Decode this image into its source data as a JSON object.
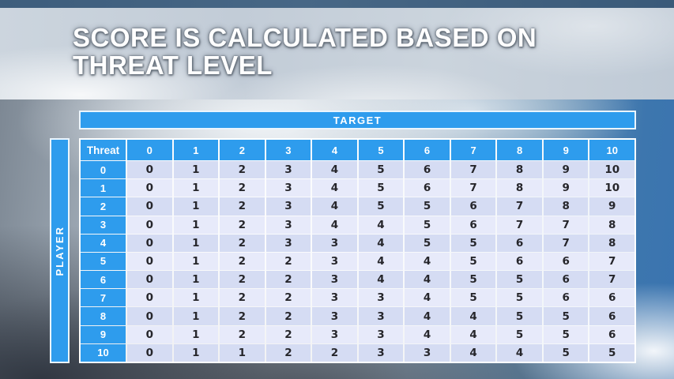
{
  "slide": {
    "title": {
      "line1": "SCORE IS CALCULATED BASED ON",
      "line2": "THREAT LEVEL"
    }
  },
  "axes": {
    "target_label": "TARGET",
    "player_label": "PLAYER"
  },
  "table": {
    "corner_label": "Threat",
    "column_headers": [
      "0",
      "1",
      "2",
      "3",
      "4",
      "5",
      "6",
      "7",
      "8",
      "9",
      "10"
    ],
    "rows": [
      {
        "label": "0",
        "values": [
          "0",
          "1",
          "2",
          "3",
          "4",
          "5",
          "6",
          "7",
          "8",
          "9",
          "10"
        ]
      },
      {
        "label": "1",
        "values": [
          "0",
          "1",
          "2",
          "3",
          "4",
          "5",
          "6",
          "7",
          "8",
          "9",
          "10"
        ]
      },
      {
        "label": "2",
        "values": [
          "0",
          "1",
          "2",
          "3",
          "4",
          "5",
          "5",
          "6",
          "7",
          "8",
          "9"
        ]
      },
      {
        "label": "3",
        "values": [
          "0",
          "1",
          "2",
          "3",
          "4",
          "4",
          "5",
          "6",
          "7",
          "7",
          "8"
        ]
      },
      {
        "label": "4",
        "values": [
          "0",
          "1",
          "2",
          "3",
          "3",
          "4",
          "5",
          "5",
          "6",
          "7",
          "8"
        ]
      },
      {
        "label": "5",
        "values": [
          "0",
          "1",
          "2",
          "2",
          "3",
          "4",
          "4",
          "5",
          "6",
          "6",
          "7"
        ]
      },
      {
        "label": "6",
        "values": [
          "0",
          "1",
          "2",
          "2",
          "3",
          "4",
          "4",
          "5",
          "5",
          "6",
          "7"
        ]
      },
      {
        "label": "7",
        "values": [
          "0",
          "1",
          "2",
          "2",
          "3",
          "3",
          "4",
          "5",
          "5",
          "6",
          "6"
        ]
      },
      {
        "label": "8",
        "values": [
          "0",
          "1",
          "2",
          "2",
          "3",
          "3",
          "4",
          "4",
          "5",
          "5",
          "6"
        ]
      },
      {
        "label": "9",
        "values": [
          "0",
          "1",
          "2",
          "2",
          "3",
          "3",
          "4",
          "4",
          "5",
          "5",
          "6"
        ]
      },
      {
        "label": "10",
        "values": [
          "0",
          "1",
          "1",
          "2",
          "2",
          "3",
          "3",
          "4",
          "4",
          "5",
          "5"
        ]
      }
    ]
  },
  "colors": {
    "accent_blue": "#2e9ced",
    "row_shaded": "#d5dcf3",
    "row_light": "#e7eafa",
    "separator_white": "#ffffff",
    "body_text": "#26262b",
    "top_strip_blue": "#41617f"
  }
}
